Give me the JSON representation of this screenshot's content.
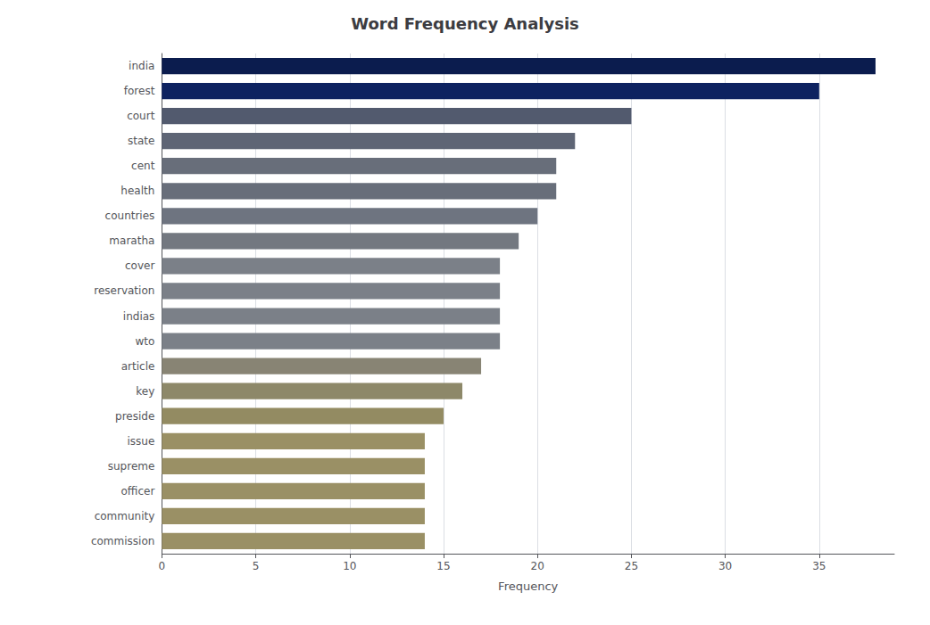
{
  "chart_data": {
    "type": "bar",
    "orientation": "horizontal",
    "title": "Word Frequency Analysis",
    "xlabel": "Frequency",
    "categories": [
      "india",
      "forest",
      "court",
      "state",
      "cent",
      "health",
      "countries",
      "maratha",
      "cover",
      "reservation",
      "indias",
      "wto",
      "article",
      "key",
      "preside",
      "issue",
      "supreme",
      "officer",
      "community",
      "commission"
    ],
    "values": [
      38,
      35,
      25,
      22,
      21,
      21,
      20,
      19,
      18,
      18,
      18,
      18,
      17,
      16,
      15,
      14,
      14,
      14,
      14,
      14
    ],
    "colors": [
      "#0B1C4E",
      "#0D2260",
      "#525A6E",
      "#5E6575",
      "#686E7A",
      "#686E7A",
      "#6E7480",
      "#737880",
      "#7B8088",
      "#7B8088",
      "#7B8088",
      "#7B8088",
      "#888474",
      "#8D8869",
      "#938B62",
      "#9A9065",
      "#9A9065",
      "#9A9065",
      "#9A9065",
      "#9A9065"
    ],
    "xlim": [
      0,
      39
    ],
    "xticks": [
      0,
      5,
      10,
      15,
      20,
      25,
      30,
      35
    ],
    "grid": true
  }
}
